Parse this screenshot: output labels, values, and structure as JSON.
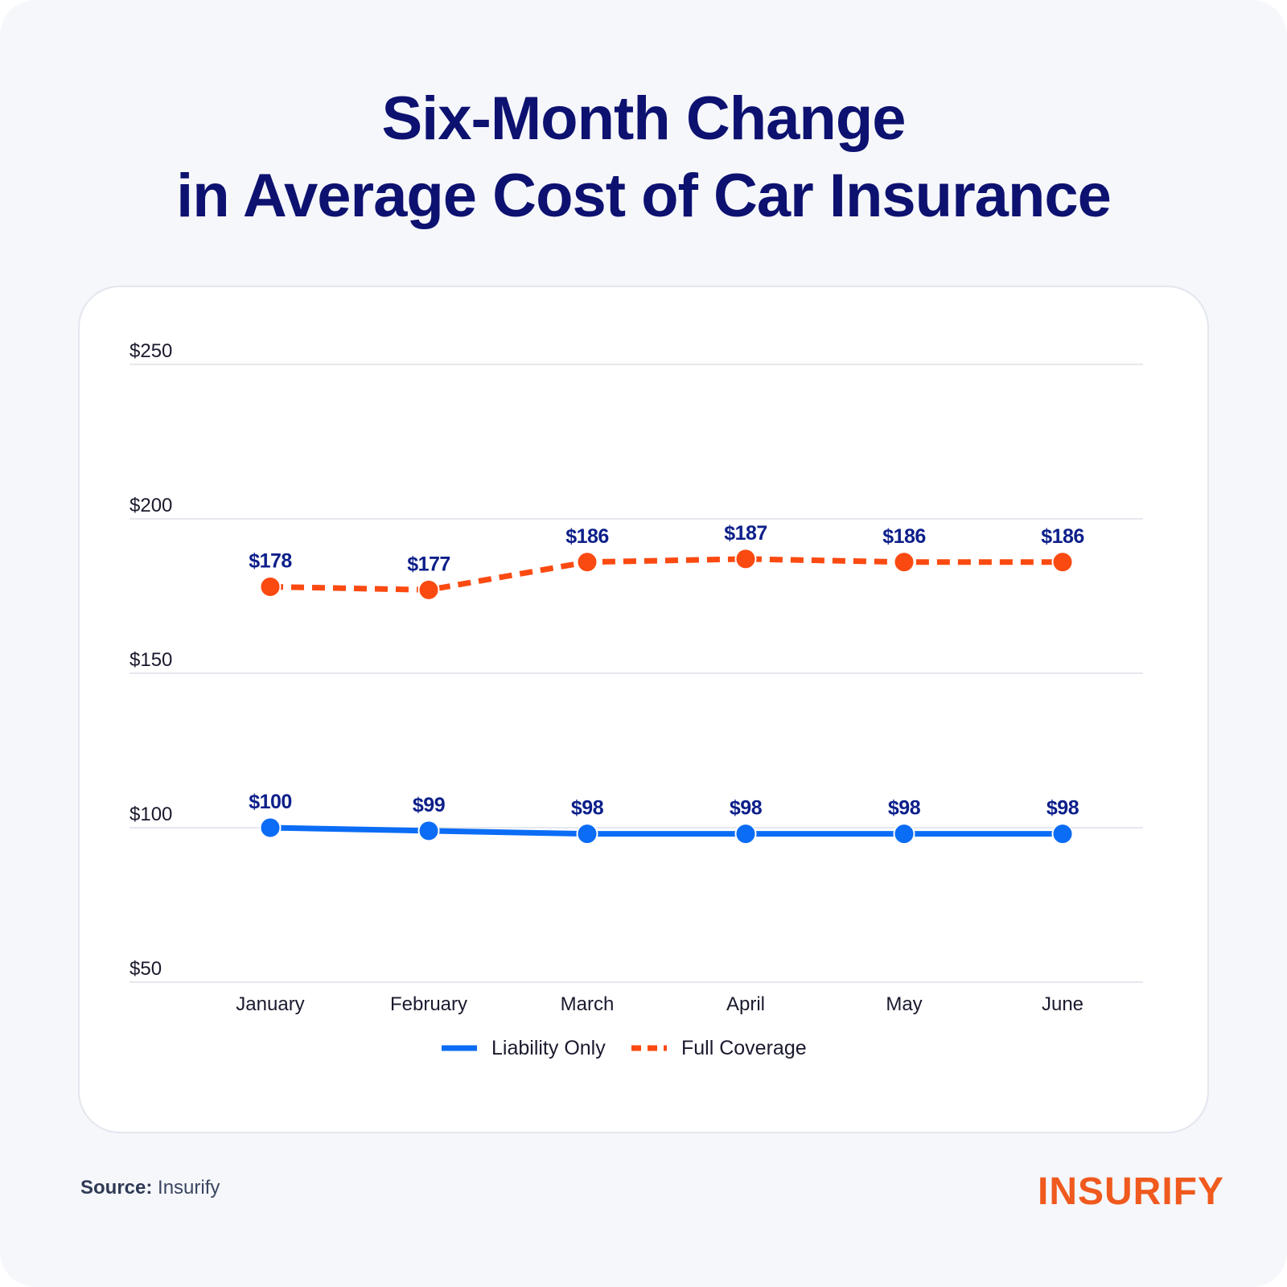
{
  "title": {
    "line1": "Six-Month Change",
    "line2": "in Average Cost of Car Insurance"
  },
  "source": {
    "label": "Source:",
    "value": "Insurify"
  },
  "brand": {
    "logo_text": "INSURIFY"
  },
  "colors": {
    "liability": "#0b6cf5",
    "full": "#fb4a11",
    "label": "#0d1f8a",
    "title": "#0d1170",
    "grid": "#dde1e8",
    "axis_text": "#1a1a2e",
    "brand": "#f05a1e"
  },
  "chart_data": {
    "type": "line",
    "categories": [
      "January",
      "February",
      "March",
      "April",
      "May",
      "June"
    ],
    "series": [
      {
        "name": "Liability Only",
        "values": [
          100,
          99,
          98,
          98,
          98,
          98
        ],
        "labels": [
          "$100",
          "$99",
          "$98",
          "$98",
          "$98",
          "$98"
        ],
        "style": "solid",
        "color": "#0b6cf5"
      },
      {
        "name": "Full Coverage",
        "values": [
          178,
          177,
          186,
          187,
          186,
          186
        ],
        "labels": [
          "$178",
          "$177",
          "$186",
          "$187",
          "$186",
          "$186"
        ],
        "style": "dashed",
        "color": "#fb4a11"
      }
    ],
    "yticks": [
      "$50",
      "$100",
      "$150",
      "$200",
      "$250"
    ],
    "ytick_values": [
      50,
      100,
      150,
      200,
      250
    ],
    "ylim": [
      50,
      250
    ],
    "grid": true,
    "legend_position": "bottom-center"
  }
}
